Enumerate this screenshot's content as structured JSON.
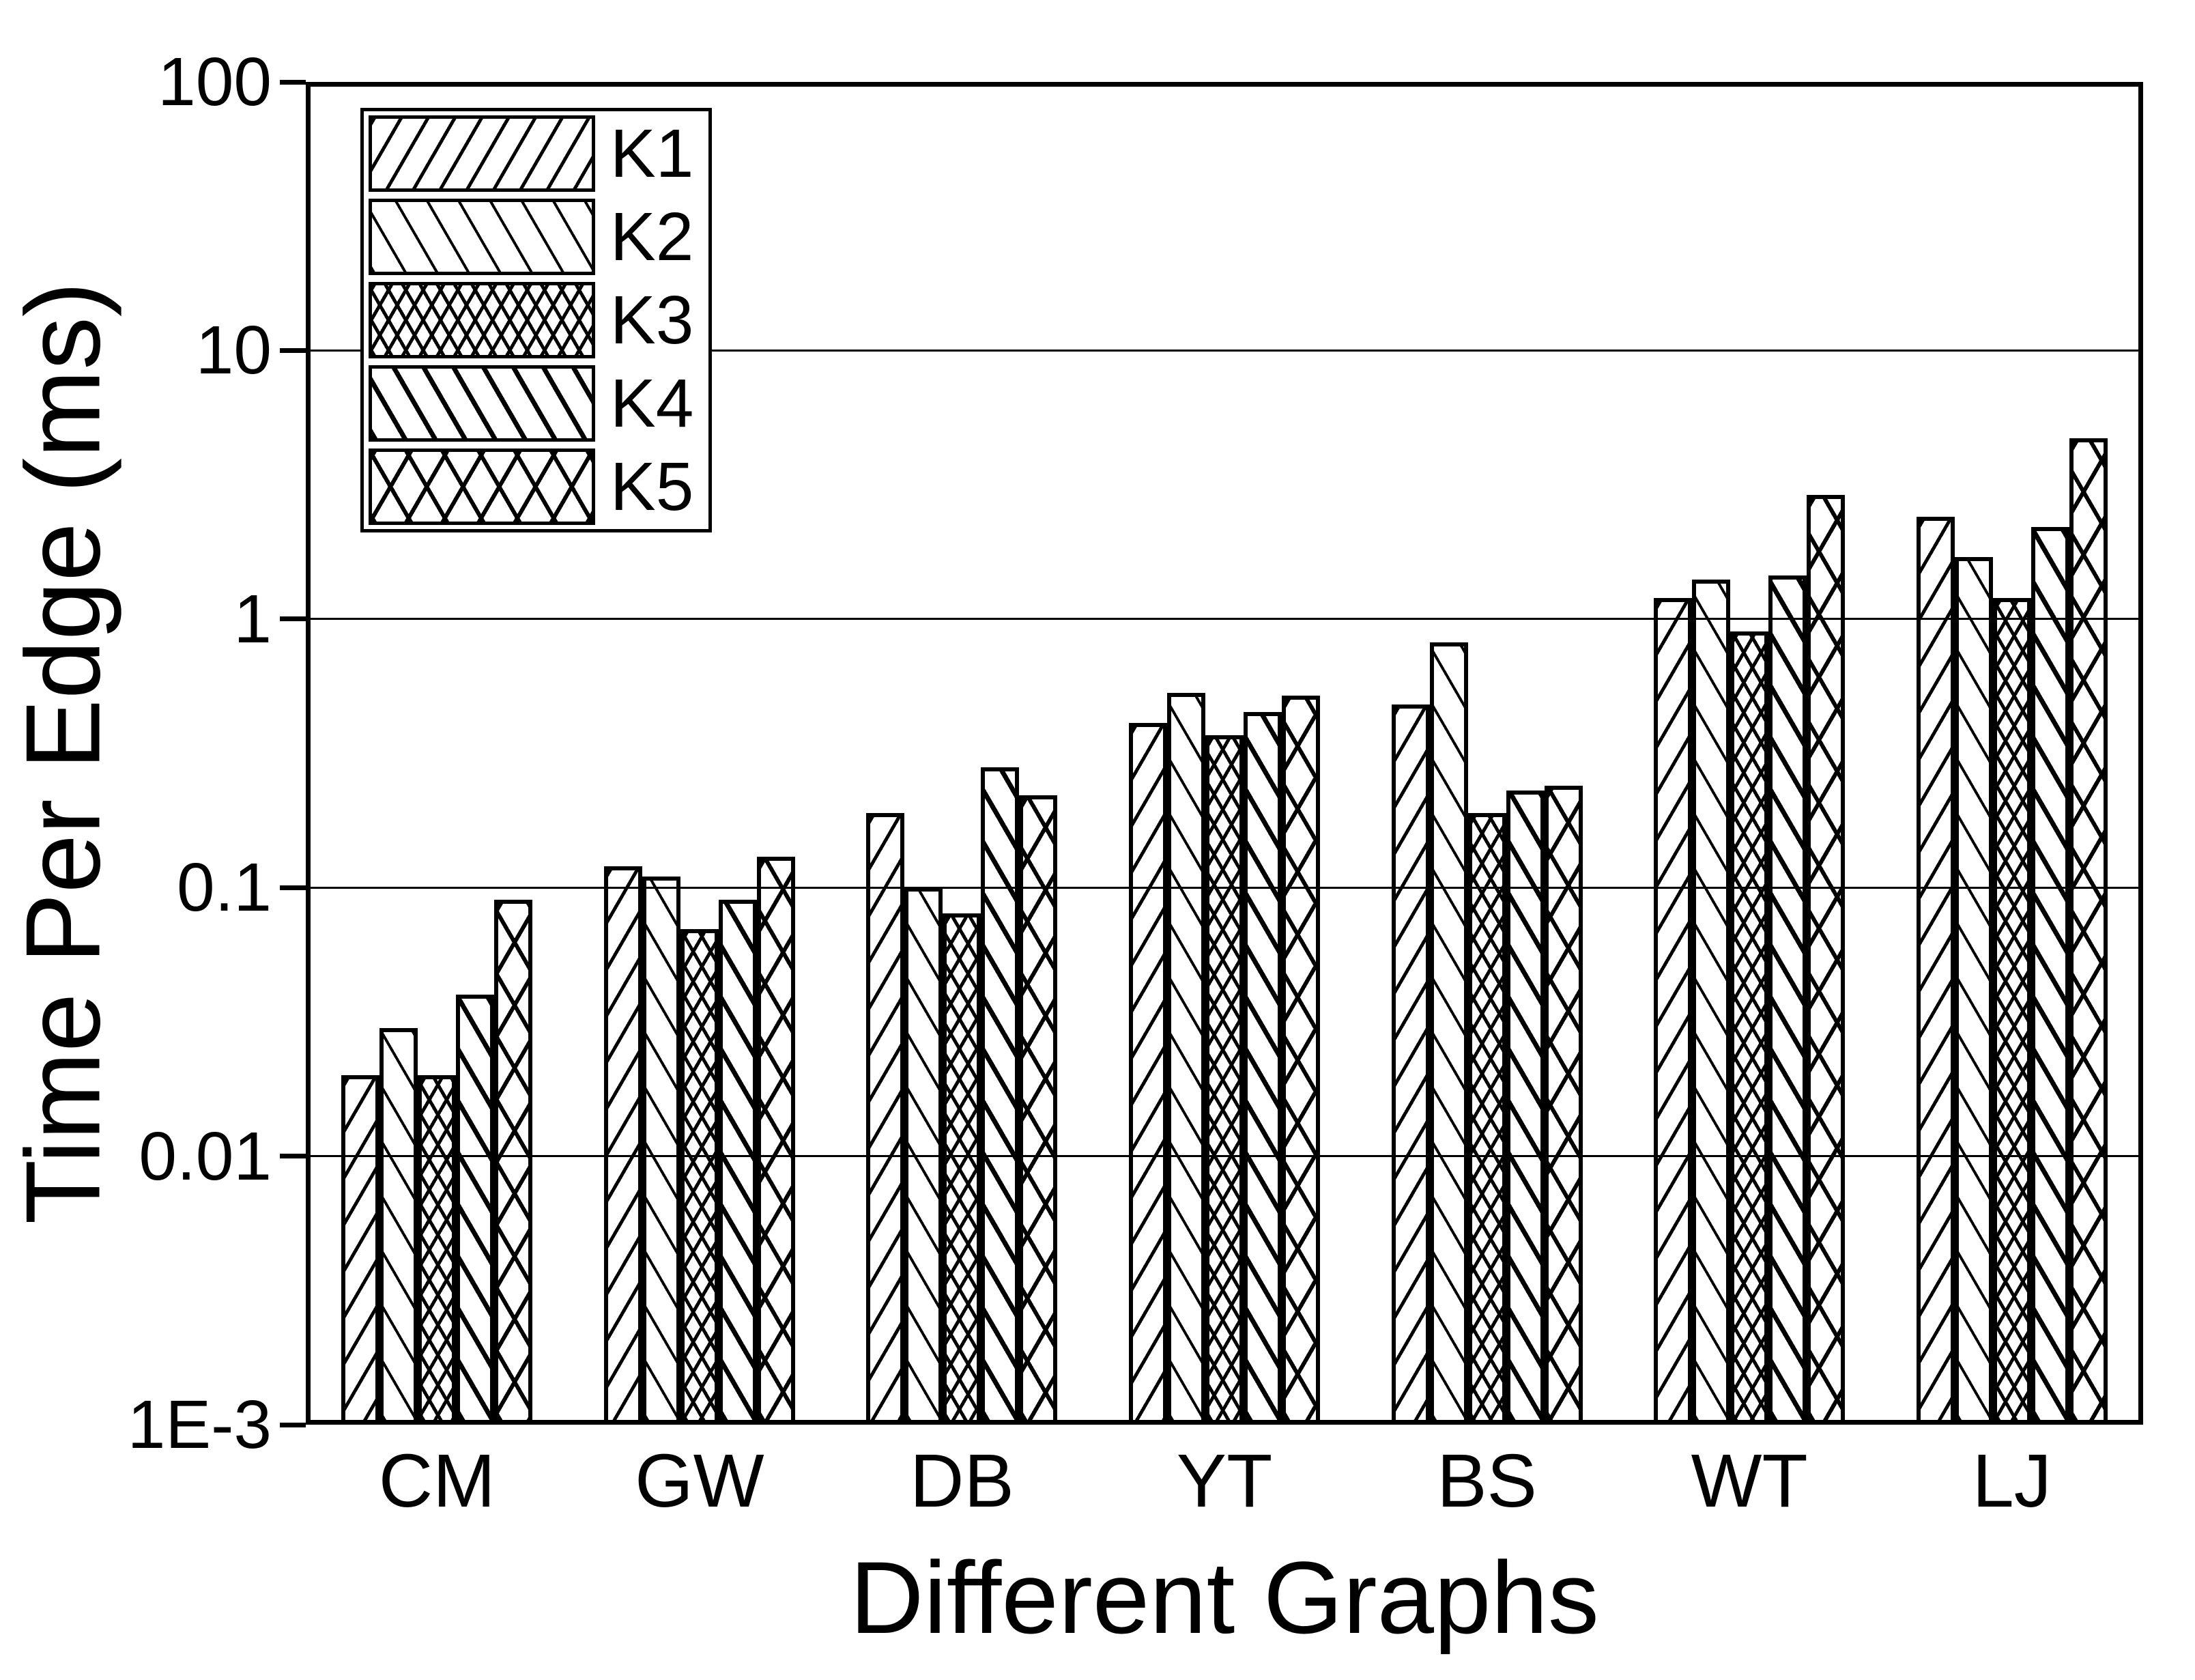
{
  "chart_data": {
    "type": "bar",
    "title": "",
    "xlabel": "Different Graphs",
    "ylabel": "Time Per Edge (ms)",
    "y_scale": "log",
    "ylim": [
      0.001,
      100
    ],
    "y_ticks": [
      "100",
      "10",
      "1",
      "0.1",
      "0.01",
      "1E-3"
    ],
    "y_tick_values": [
      100,
      10,
      1,
      0.1,
      0.01,
      0.001
    ],
    "gridline_values": [
      10,
      1,
      0.1,
      0.01
    ],
    "grid": "horizontal",
    "legend_position": "top-left-inside",
    "categories": [
      "CM",
      "GW",
      "DB",
      "YT",
      "BS",
      "WT",
      "LJ"
    ],
    "series": [
      {
        "name": "K1",
        "pattern": "diagonal-up",
        "values": [
          0.02,
          0.12,
          0.19,
          0.41,
          0.48,
          1.2,
          2.4
        ]
      },
      {
        "name": "K2",
        "pattern": "diagonal-down",
        "values": [
          0.03,
          0.11,
          0.1,
          0.53,
          0.82,
          1.4,
          1.7
        ]
      },
      {
        "name": "K3",
        "pattern": "crosshatch-dense",
        "values": [
          0.02,
          0.07,
          0.08,
          0.37,
          0.19,
          0.9,
          1.2
        ]
      },
      {
        "name": "K4",
        "pattern": "diagonal-down-wide",
        "values": [
          0.04,
          0.09,
          0.28,
          0.45,
          0.23,
          1.45,
          2.2
        ]
      },
      {
        "name": "K5",
        "pattern": "crosshatch-wide",
        "values": [
          0.09,
          0.13,
          0.22,
          0.52,
          0.24,
          2.9,
          4.7
        ]
      }
    ],
    "colors": {
      "foreground": "#000000",
      "background": "#ffffff"
    }
  }
}
